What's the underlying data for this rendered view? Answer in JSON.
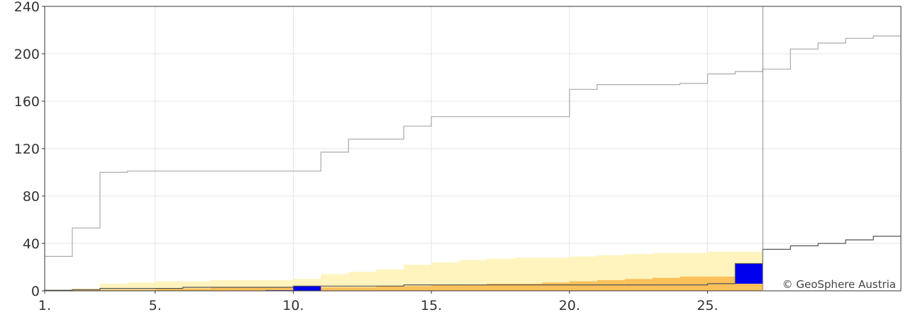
{
  "chart_data": {
    "type": "area",
    "title": "",
    "xlabel": "",
    "ylabel": "",
    "xlim": [
      1,
      32
    ],
    "ylim": [
      0,
      240
    ],
    "grid": true,
    "x_tick_labels": [
      "1.",
      "5.",
      "10.",
      "15.",
      "20.",
      "25."
    ],
    "x_tick_values": [
      1,
      5,
      10,
      15,
      20,
      25
    ],
    "y_tick_labels": [
      "0",
      "40",
      "80",
      "120",
      "160",
      "200",
      "240"
    ],
    "y_tick_values": [
      0,
      40,
      80,
      120,
      160,
      200,
      240
    ],
    "current_day_marker": 27,
    "credit": "© GeoSphere Austria",
    "colors": {
      "upper_band": "#fff4be",
      "lower_band": "#fbc15a",
      "actual": "#0000ee",
      "max_line": "#aaaaaa",
      "mean_line": "#555555",
      "grid": "#e4e4e4",
      "axis": "#333333"
    },
    "days": [
      1,
      2,
      3,
      4,
      5,
      6,
      7,
      8,
      9,
      10,
      11,
      12,
      13,
      14,
      15,
      16,
      17,
      18,
      19,
      20,
      21,
      22,
      23,
      24,
      25,
      26,
      27,
      28,
      29,
      30,
      31
    ],
    "series": [
      {
        "key": "max_line",
        "values": [
          29,
          53,
          100,
          101,
          101,
          101,
          101,
          101,
          101,
          101,
          117,
          128,
          128,
          139,
          147,
          147,
          147,
          147,
          147,
          170,
          174,
          174,
          174,
          175,
          183,
          185,
          187,
          204,
          209,
          213,
          215
        ]
      },
      {
        "key": "upper_band",
        "values": [
          1,
          2,
          6,
          7,
          8,
          8,
          9,
          9,
          9,
          10,
          14,
          16,
          18,
          22,
          24,
          26,
          27,
          28,
          28,
          29,
          30,
          31,
          32,
          32,
          33,
          33,
          35,
          38,
          40,
          43,
          46
        ]
      },
      {
        "key": "mean_line",
        "values": [
          0.5,
          1,
          2,
          2,
          2,
          3,
          3,
          3,
          3,
          4,
          4,
          4,
          4,
          5,
          5,
          5,
          5,
          5,
          5,
          5,
          5,
          5,
          5,
          5,
          6,
          23,
          35,
          38,
          40,
          43,
          46
        ]
      },
      {
        "key": "lower_band",
        "values": [
          0.5,
          1,
          1,
          1,
          2,
          2,
          3,
          3,
          3,
          3,
          3,
          3,
          4,
          4,
          5,
          5,
          6,
          6,
          7,
          8,
          9,
          10,
          11,
          12,
          12,
          23
        ]
      },
      {
        "key": "actual",
        "values": [
          0,
          0,
          0,
          0,
          0,
          0,
          0,
          0,
          0.5,
          4,
          0,
          0,
          0,
          0,
          0,
          0,
          0,
          0,
          0,
          0,
          0,
          0,
          0,
          0,
          0,
          23
        ]
      },
      {
        "key": "actual_base",
        "values": [
          0,
          0,
          0,
          0,
          0,
          0,
          0,
          0,
          0,
          0,
          0,
          0,
          0,
          0,
          0,
          0,
          0,
          0,
          0,
          0,
          0,
          0,
          0,
          0,
          0,
          6
        ]
      }
    ]
  }
}
